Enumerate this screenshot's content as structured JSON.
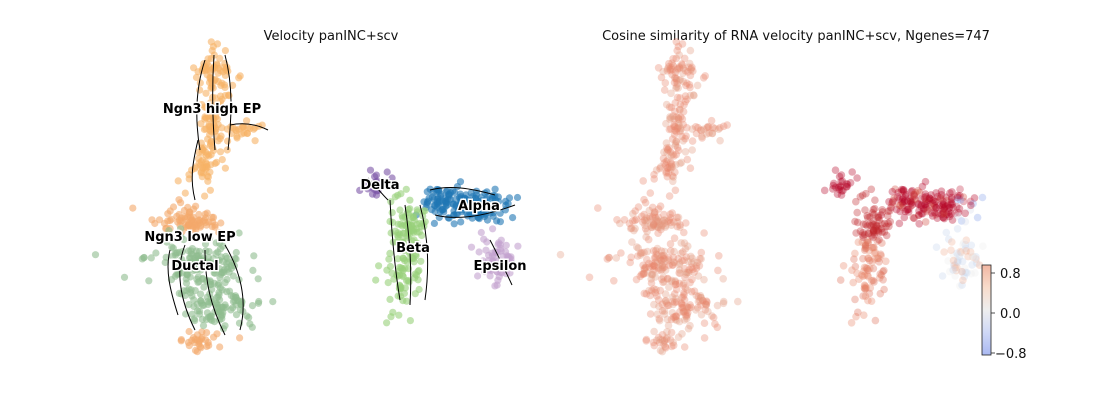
{
  "chart_data": [
    {
      "type": "scatter",
      "title": "Velocity panINC+scv",
      "overlay": "velocity streamlines with arrowheads",
      "axes_visible": false,
      "clusters": [
        {
          "name": "Ngn3 high EP",
          "color": "#f7b366"
        },
        {
          "name": "Ngn3 low EP",
          "color": "#f4a96a"
        },
        {
          "name": "Ductal",
          "color": "#8fbc8f"
        },
        {
          "name": "Delta",
          "color": "#7b55a6"
        },
        {
          "name": "Alpha",
          "color": "#1f77b4"
        },
        {
          "name": "Beta",
          "color": "#98d07a"
        },
        {
          "name": "Epsilon",
          "color": "#c3a2cf"
        }
      ]
    },
    {
      "type": "scatter",
      "title": "Cosine similarity of RNA velocity panINC+scv, Ngenes=747",
      "axes_visible": false,
      "colormap": "coolwarm",
      "colorbar": {
        "ticks": [
          "0.8",
          "0.0",
          "−0.8"
        ],
        "range": [
          -1.0,
          1.0
        ]
      }
    }
  ]
}
